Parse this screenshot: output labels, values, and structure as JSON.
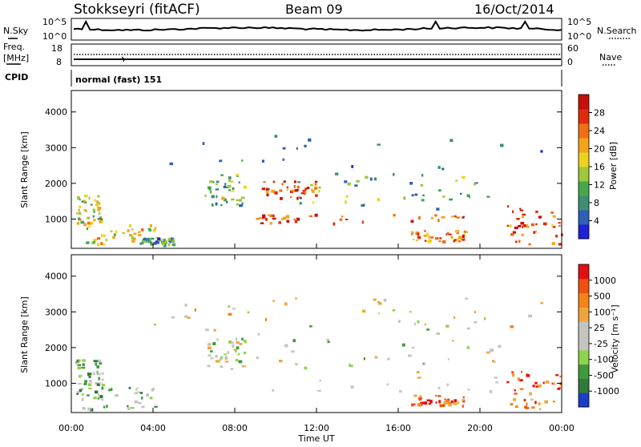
{
  "header": {
    "station": "Stokkseyri (fitACF)",
    "beam": "Beam 09",
    "date": "16/Oct/2014"
  },
  "strips": {
    "nsky_label": "N.Sky",
    "nsky_ticks": [
      "10^5",
      "10^0"
    ],
    "nsearch_label": "N.Search",
    "nsearch_ticks": [
      "10^5",
      "10^0"
    ],
    "freq_label_1": "Freq.",
    "freq_label_2": "[MHz]",
    "freq_ticks": [
      "18",
      "8"
    ],
    "nave_label": "Nave",
    "nave_ticks": [
      "60",
      "0"
    ],
    "cpid_label": "CPID",
    "cpid_value": "normal (fast) 151"
  },
  "chart_data": [
    {
      "type": "heatmap",
      "name": "power",
      "ylabel": "Slant Range [km]",
      "ylim": [
        180,
        4600
      ],
      "yticks": [
        "1000",
        "2000",
        "3000",
        "4000"
      ],
      "xlim": [
        "00:00",
        "24:00"
      ],
      "colorbar": {
        "label": "Power [dB]",
        "ticks": [
          "4",
          "8",
          "12",
          "16",
          "20",
          "24",
          "28"
        ],
        "colors": [
          "#1c22d8",
          "#2f5fb8",
          "#3e8f74",
          "#46a84a",
          "#9cc93a",
          "#f0d21c",
          "#f4a418",
          "#f26e14",
          "#e02a0c",
          "#c8100a"
        ]
      },
      "regions": [
        {
          "t0": 0.2,
          "t1": 4.1,
          "r0": 300,
          "r1": 900,
          "level": 0.55
        },
        {
          "t0": 0.2,
          "t1": 1.5,
          "r0": 900,
          "r1": 1700,
          "level": 0.5
        },
        {
          "t0": 3.3,
          "t1": 5.0,
          "r0": 300,
          "r1": 500,
          "level": 0.3
        },
        {
          "t0": 6.5,
          "t1": 8.5,
          "r0": 1400,
          "r1": 2300,
          "level": 0.4
        },
        {
          "t0": 9.3,
          "t1": 12.0,
          "r0": 1600,
          "r1": 2100,
          "level": 0.8
        },
        {
          "t0": 9.0,
          "t1": 19.7,
          "r0": 900,
          "r1": 1150,
          "level": 0.85
        },
        {
          "t0": 11.0,
          "t1": 20.8,
          "r0": 1300,
          "r1": 2300,
          "level": 0.35
        },
        {
          "t0": 16.5,
          "t1": 19.3,
          "r0": 400,
          "r1": 700,
          "level": 0.75
        },
        {
          "t0": 21.2,
          "t1": 24.0,
          "r0": 300,
          "r1": 1400,
          "level": 0.8
        },
        {
          "t0": 4.0,
          "t1": 23.0,
          "r0": 2400,
          "r1": 3400,
          "level": 0.12
        }
      ]
    },
    {
      "type": "heatmap",
      "name": "velocity",
      "ylabel": "Slant Range [km]",
      "ylim": [
        180,
        4600
      ],
      "yticks": [
        "1000",
        "2000",
        "3000",
        "4000"
      ],
      "xlim": [
        "00:00",
        "24:00"
      ],
      "xticks": [
        "00:00",
        "04:00",
        "08:00",
        "12:00",
        "16:00",
        "20:00",
        "00:00"
      ],
      "xlabel": "Time UT",
      "colorbar": {
        "label": "Velocity [m s⁻¹]",
        "ticks": [
          "1000",
          "500",
          "100",
          "25",
          "-25",
          "-100",
          "-500",
          "-1000"
        ],
        "colors": [
          "#1c3ec8",
          "#2f7a3c",
          "#3f9a3a",
          "#8fd24c",
          "#c4c4c0",
          "#c4c4c0",
          "#f2a43c",
          "#f48414",
          "#f05010",
          "#e01010"
        ]
      },
      "regions": [
        {
          "t0": 0.2,
          "t1": 4.1,
          "r0": 300,
          "r1": 900,
          "level": 0.35
        },
        {
          "t0": 0.2,
          "t1": 1.5,
          "r0": 900,
          "r1": 1700,
          "level": 0.3
        },
        {
          "t0": 6.5,
          "t1": 8.5,
          "r0": 1400,
          "r1": 2300,
          "level": 0.45
        },
        {
          "t0": 9.0,
          "t1": 21.0,
          "r0": 800,
          "r1": 2300,
          "level": 0.47
        },
        {
          "t0": 16.5,
          "t1": 19.3,
          "r0": 400,
          "r1": 700,
          "level": 0.82
        },
        {
          "t0": 21.2,
          "t1": 24.0,
          "r0": 300,
          "r1": 1400,
          "level": 0.8
        },
        {
          "t0": 4.0,
          "t1": 23.0,
          "r0": 2400,
          "r1": 3400,
          "level": 0.5
        }
      ]
    }
  ]
}
